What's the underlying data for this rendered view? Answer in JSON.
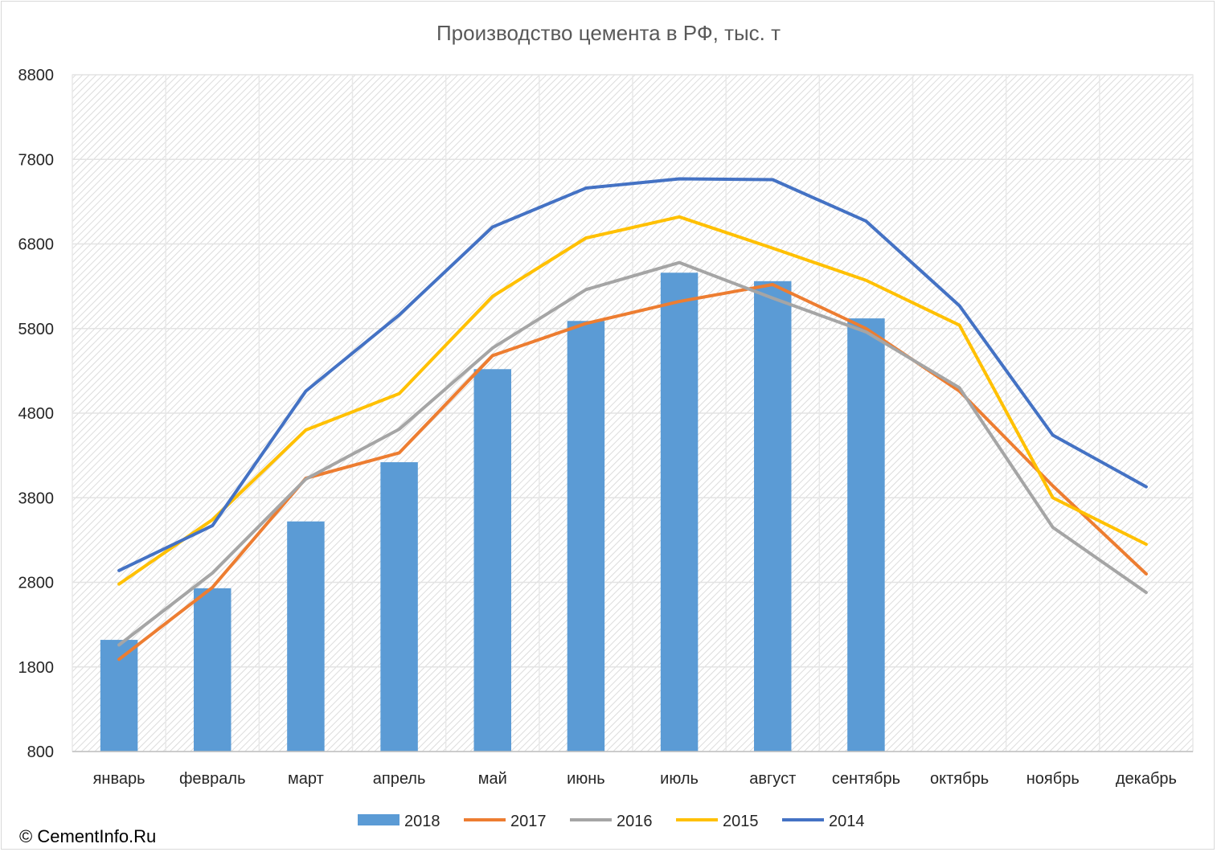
{
  "chart_data": {
    "type": "bar",
    "title": "Производство цемента в РФ, тыс. т",
    "xlabel": "",
    "ylabel": "",
    "ylim": [
      800,
      8800
    ],
    "yticks": [
      800,
      1800,
      2800,
      3800,
      4800,
      5800,
      6800,
      7800,
      8800
    ],
    "categories": [
      "январь",
      "февраль",
      "март",
      "апрель",
      "май",
      "июнь",
      "июль",
      "август",
      "сентябрь",
      "октябрь",
      "ноябрь",
      "декабрь"
    ],
    "series": [
      {
        "name": "2018",
        "type": "bar",
        "color": "#5b9bd5",
        "values": [
          2120,
          2730,
          3520,
          4220,
          5320,
          5890,
          6460,
          6360,
          5920,
          null,
          null,
          null
        ]
      },
      {
        "name": "2017",
        "type": "line",
        "color": "#ed7d31",
        "values": [
          1890,
          2740,
          4030,
          4330,
          5480,
          5860,
          6120,
          6320,
          5800,
          5060,
          3940,
          2900
        ]
      },
      {
        "name": "2016",
        "type": "line",
        "color": "#a5a5a5",
        "values": [
          2060,
          2910,
          4020,
          4610,
          5570,
          6260,
          6580,
          6160,
          5760,
          5100,
          3450,
          2680
        ]
      },
      {
        "name": "2015",
        "type": "line",
        "color": "#ffc000",
        "values": [
          2780,
          3540,
          4600,
          5030,
          6180,
          6870,
          7120,
          6750,
          6370,
          5840,
          3800,
          3250
        ]
      },
      {
        "name": "2014",
        "type": "line",
        "color": "#4472c4",
        "values": [
          2940,
          3470,
          5060,
          5960,
          7000,
          7460,
          7570,
          7560,
          7070,
          6070,
          4540,
          3930
        ]
      }
    ],
    "grid": true,
    "legend": "bottom"
  },
  "copyright": "© CementInfo.Ru"
}
